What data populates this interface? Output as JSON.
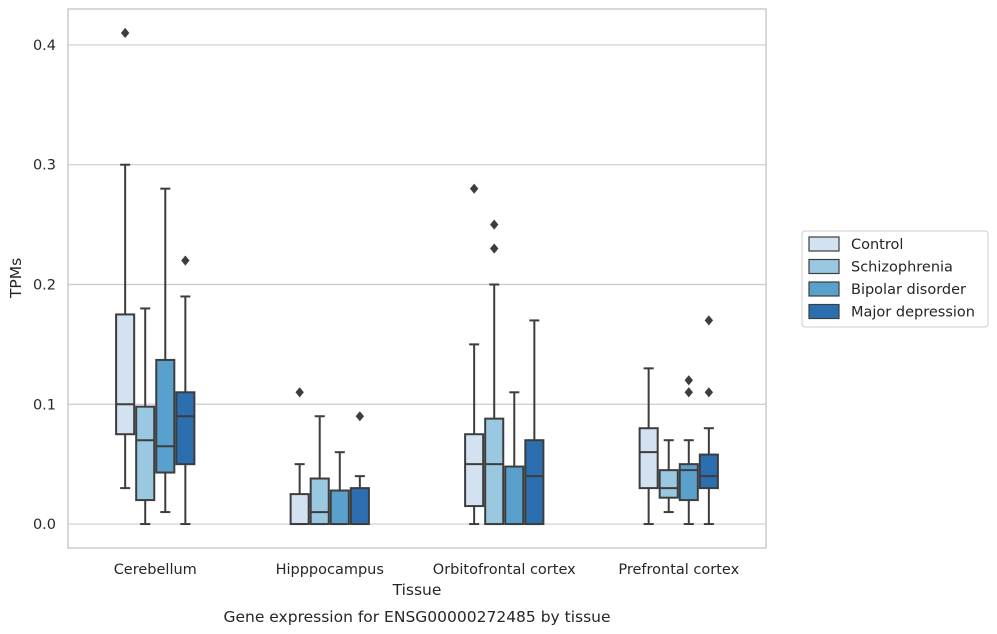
{
  "chart_data": {
    "type": "box",
    "xlabel": "Tissue",
    "ylabel": "TPMs",
    "caption": "Gene expression for ENSG00000272485 by tissue",
    "ylim": [
      -0.02,
      0.43
    ],
    "yticks": [
      0.0,
      0.1,
      0.2,
      0.3,
      0.4
    ],
    "ytick_labels": [
      "0.0",
      "0.1",
      "0.2",
      "0.3",
      "0.4"
    ],
    "grid": "horizontal",
    "legend_position": "right",
    "categories": [
      "Cerebellum",
      "Hipppocampus",
      "Orbitofrontal cortex",
      "Prefrontal cortex"
    ],
    "series": [
      {
        "name": "Control",
        "color": "#d2e2f1",
        "boxes": [
          {
            "whisker_low": 0.03,
            "q1": 0.075,
            "median": 0.1,
            "q3": 0.175,
            "whisker_high": 0.3,
            "outliers": [
              0.41
            ]
          },
          {
            "whisker_low": 0.0,
            "q1": 0.0,
            "median": 0.0,
            "q3": 0.025,
            "whisker_high": 0.05,
            "outliers": [
              0.11
            ]
          },
          {
            "whisker_low": 0.0,
            "q1": 0.015,
            "median": 0.05,
            "q3": 0.075,
            "whisker_high": 0.15,
            "outliers": [
              0.28
            ]
          },
          {
            "whisker_low": 0.0,
            "q1": 0.03,
            "median": 0.06,
            "q3": 0.08,
            "whisker_high": 0.13,
            "outliers": []
          }
        ]
      },
      {
        "name": "Schizophrenia",
        "color": "#9ac8e0",
        "boxes": [
          {
            "whisker_low": 0.0,
            "q1": 0.02,
            "median": 0.07,
            "q3": 0.098,
            "whisker_high": 0.18,
            "outliers": []
          },
          {
            "whisker_low": 0.0,
            "q1": 0.0,
            "median": 0.01,
            "q3": 0.038,
            "whisker_high": 0.09,
            "outliers": []
          },
          {
            "whisker_low": 0.0,
            "q1": 0.0,
            "median": 0.05,
            "q3": 0.088,
            "whisker_high": 0.2,
            "outliers": [
              0.23,
              0.25
            ]
          },
          {
            "whisker_low": 0.01,
            "q1": 0.022,
            "median": 0.03,
            "q3": 0.045,
            "whisker_high": 0.07,
            "outliers": []
          }
        ]
      },
      {
        "name": "Bipolar disorder",
        "color": "#5aa0cd",
        "boxes": [
          {
            "whisker_low": 0.01,
            "q1": 0.043,
            "median": 0.065,
            "q3": 0.137,
            "whisker_high": 0.28,
            "outliers": []
          },
          {
            "whisker_low": 0.0,
            "q1": 0.0,
            "median": 0.0,
            "q3": 0.028,
            "whisker_high": 0.06,
            "outliers": []
          },
          {
            "whisker_low": 0.0,
            "q1": 0.0,
            "median": 0.0,
            "q3": 0.048,
            "whisker_high": 0.11,
            "outliers": []
          },
          {
            "whisker_low": 0.0,
            "q1": 0.02,
            "median": 0.045,
            "q3": 0.05,
            "whisker_high": 0.07,
            "outliers": [
              0.11,
              0.12
            ]
          }
        ]
      },
      {
        "name": "Major depression",
        "color": "#2b6fb0",
        "boxes": [
          {
            "whisker_low": 0.0,
            "q1": 0.05,
            "median": 0.09,
            "q3": 0.11,
            "whisker_high": 0.19,
            "outliers": [
              0.22
            ]
          },
          {
            "whisker_low": 0.0,
            "q1": 0.0,
            "median": 0.0,
            "q3": 0.03,
            "whisker_high": 0.04,
            "outliers": [
              0.09
            ]
          },
          {
            "whisker_low": 0.0,
            "q1": 0.0,
            "median": 0.04,
            "q3": 0.07,
            "whisker_high": 0.17,
            "outliers": []
          },
          {
            "whisker_low": 0.0,
            "q1": 0.03,
            "median": 0.04,
            "q3": 0.058,
            "whisker_high": 0.08,
            "outliers": [
              0.11,
              0.17
            ]
          }
        ]
      }
    ]
  }
}
